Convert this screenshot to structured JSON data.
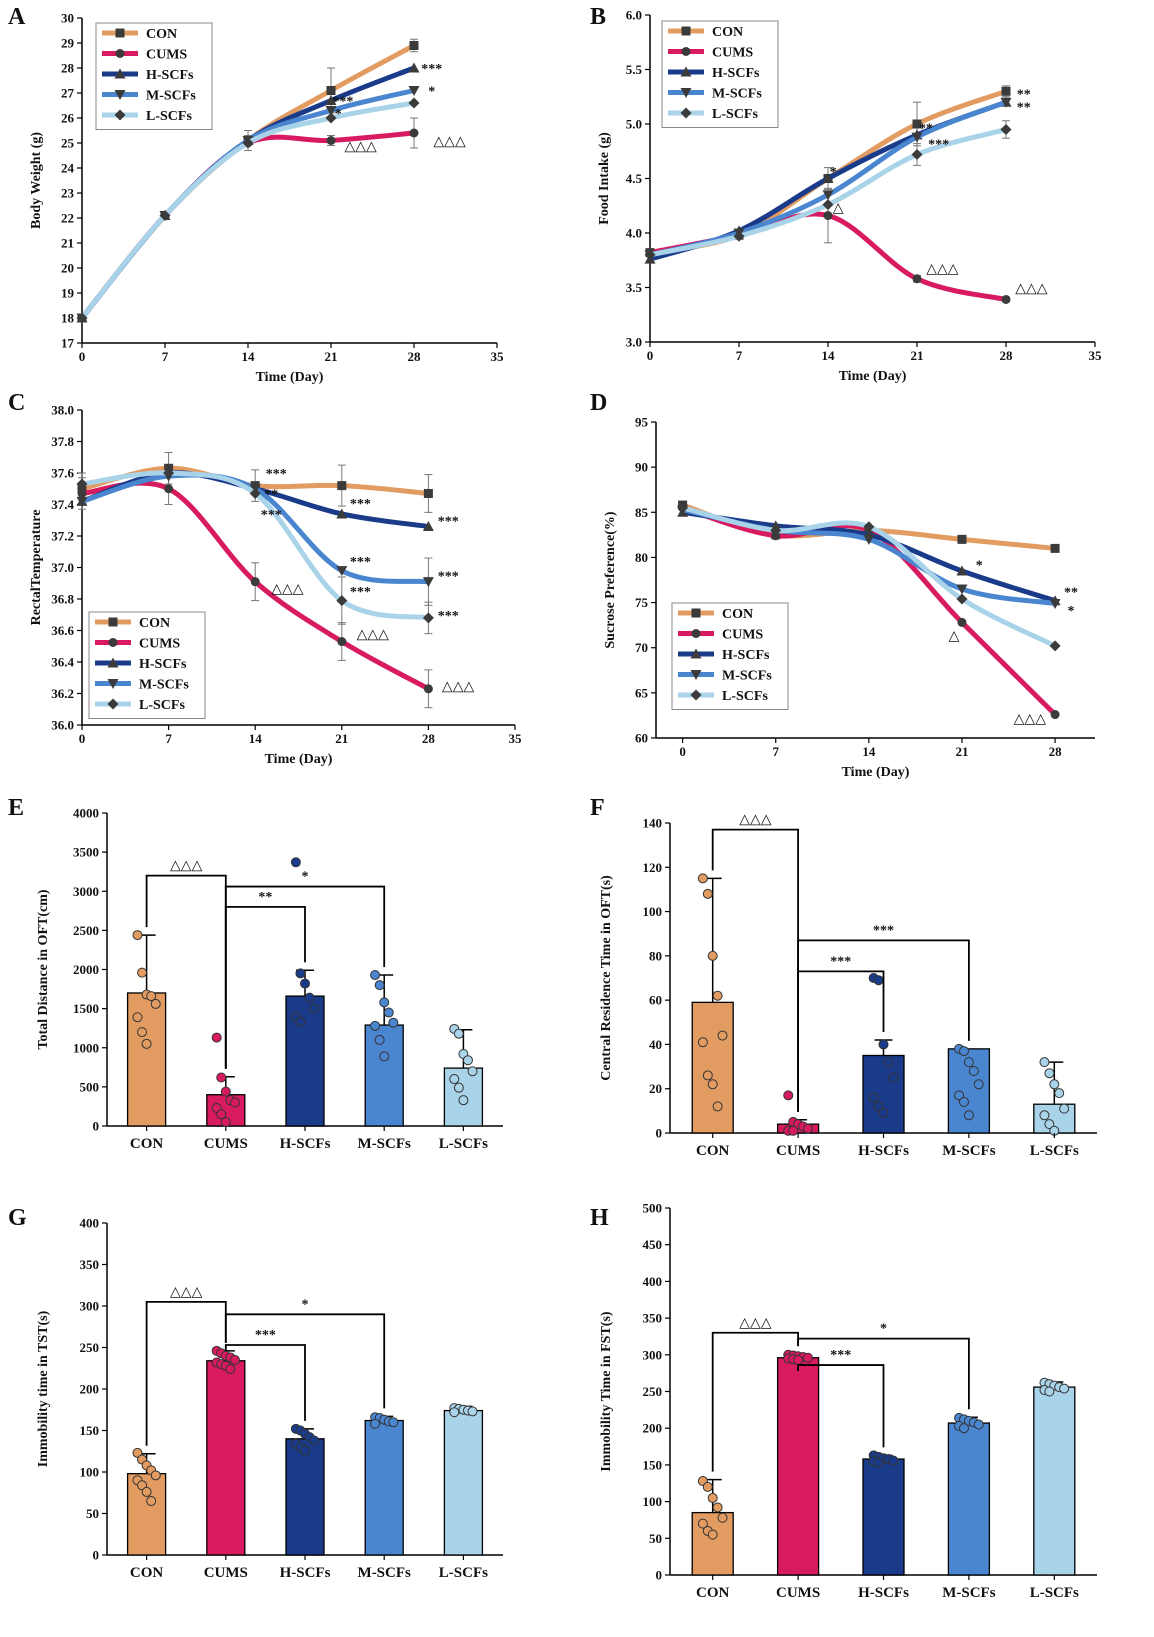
{
  "chart_data": [
    {
      "panel": "A",
      "type": "line",
      "xlabel": "Time (Day)",
      "ylabel": "Body Weight (g)",
      "xlim": [
        0,
        35
      ],
      "ylim": [
        17,
        30
      ],
      "xticks": [
        "0",
        "7",
        "14",
        "21",
        "28",
        "35"
      ],
      "yticks": [
        "17",
        "18",
        "19",
        "20",
        "21",
        "22",
        "23",
        "24",
        "25",
        "26",
        "27",
        "28",
        "29",
        "30"
      ],
      "x": [
        0,
        7,
        14,
        21,
        28
      ],
      "series": [
        {
          "name": "CON",
          "values": [
            18.0,
            22.1,
            25.1,
            27.1,
            28.9
          ],
          "err": [
            0.1,
            0.15,
            0.4,
            0.9,
            0.25
          ]
        },
        {
          "name": "CUMS",
          "values": [
            18.0,
            22.1,
            25.0,
            25.1,
            25.4
          ],
          "err": [
            0.1,
            0.15,
            0.3,
            0.2,
            0.6
          ]
        },
        {
          "name": "H-SCFs",
          "values": [
            18.0,
            22.1,
            25.1,
            26.7,
            28.0
          ],
          "err": [
            0,
            0,
            0,
            0,
            0
          ]
        },
        {
          "name": "M-SCFs",
          "values": [
            18.0,
            22.1,
            25.1,
            26.3,
            27.1
          ],
          "err": [
            0,
            0,
            0,
            0,
            0
          ]
        },
        {
          "name": "L-SCFs",
          "values": [
            18.0,
            22.1,
            25.0,
            26.0,
            26.6
          ],
          "err": [
            0,
            0,
            0,
            0,
            0
          ]
        }
      ],
      "annotations": [
        {
          "text": "***",
          "x": 29.5,
          "y": 28.0
        },
        {
          "text": "*",
          "x": 29.5,
          "y": 27.1
        },
        {
          "text": "***",
          "x": 22.0,
          "y": 26.7
        },
        {
          "text": "*",
          "x": 21.6,
          "y": 26.2
        },
        {
          "text": "△△△",
          "x": 23.5,
          "y": 24.9
        },
        {
          "text": "△△△",
          "x": 31.0,
          "y": 25.1
        }
      ]
    },
    {
      "panel": "B",
      "type": "line",
      "xlabel": "Time (Day)",
      "ylabel": "Food Intake (g)",
      "xlim": [
        0,
        35
      ],
      "ylim": [
        3.0,
        6.0
      ],
      "xticks": [
        "0",
        "7",
        "14",
        "21",
        "28",
        "35"
      ],
      "yticks": [
        "3.0",
        "3.5",
        "4.0",
        "4.5",
        "5.0",
        "5.5",
        "6.0"
      ],
      "x": [
        0,
        7,
        14,
        21,
        28
      ],
      "series": [
        {
          "name": "CON",
          "values": [
            3.82,
            3.98,
            4.5,
            5.0,
            5.3
          ],
          "err": [
            0.02,
            0.04,
            0.1,
            0.2,
            0.05
          ]
        },
        {
          "name": "CUMS",
          "values": [
            3.82,
            3.98,
            4.16,
            3.58,
            3.39
          ],
          "err": [
            0.02,
            0.04,
            0.25,
            0.03,
            0.02
          ]
        },
        {
          "name": "H-SCFs",
          "values": [
            3.76,
            4.02,
            4.5,
            4.9,
            5.2
          ],
          "err": [
            0,
            0,
            0,
            0,
            0
          ]
        },
        {
          "name": "M-SCFs",
          "values": [
            3.8,
            4.0,
            4.35,
            4.88,
            5.2
          ],
          "err": [
            0,
            0,
            0,
            0,
            0
          ]
        },
        {
          "name": "L-SCFs",
          "values": [
            3.8,
            3.97,
            4.26,
            4.72,
            4.95
          ],
          "err": [
            0,
            0,
            0,
            0.1,
            0.08
          ]
        }
      ],
      "annotations": [
        {
          "text": "**",
          "x": 29.4,
          "y": 5.28
        },
        {
          "text": "**",
          "x": 29.4,
          "y": 5.16
        },
        {
          "text": "*",
          "x": 14.4,
          "y": 4.57
        },
        {
          "text": "**",
          "x": 21.7,
          "y": 4.97
        },
        {
          "text": "***",
          "x": 22.7,
          "y": 4.82
        },
        {
          "text": "△",
          "x": 14.8,
          "y": 4.24
        },
        {
          "text": "△△△",
          "x": 23.0,
          "y": 3.68
        },
        {
          "text": "△△△",
          "x": 30.0,
          "y": 3.5
        }
      ]
    },
    {
      "panel": "C",
      "type": "line",
      "xlabel": "Time (Day)",
      "ylabel": "RectalTemperature",
      "xlim": [
        0,
        35
      ],
      "ylim": [
        36.0,
        38.0
      ],
      "xticks": [
        "0",
        "7",
        "14",
        "21",
        "28",
        "35"
      ],
      "yticks": [
        "36.0",
        "36.2",
        "36.4",
        "36.6",
        "36.8",
        "37.0",
        "37.2",
        "37.4",
        "37.6",
        "37.8",
        "38.0"
      ],
      "x": [
        0,
        7,
        14,
        21,
        28
      ],
      "series": [
        {
          "name": "CON",
          "values": [
            37.5,
            37.63,
            37.52,
            37.52,
            37.47
          ],
          "err": [
            0.1,
            0.1,
            0.1,
            0.13,
            0.12
          ]
        },
        {
          "name": "CUMS",
          "values": [
            37.47,
            37.5,
            36.91,
            36.53,
            36.23
          ],
          "err": [
            0.1,
            0.1,
            0.12,
            0.12,
            0.12
          ]
        },
        {
          "name": "H-SCFs",
          "values": [
            37.42,
            37.6,
            37.5,
            37.34,
            37.26
          ],
          "err": [
            0,
            0,
            0,
            0,
            0
          ]
        },
        {
          "name": "M-SCFs",
          "values": [
            37.42,
            37.58,
            37.5,
            36.98,
            36.91
          ],
          "err": [
            0,
            0,
            0,
            0,
            0.15
          ]
        },
        {
          "name": "L-SCFs",
          "values": [
            37.53,
            37.6,
            37.47,
            36.79,
            36.68
          ],
          "err": [
            0,
            0,
            0,
            0.15,
            0.1
          ]
        }
      ],
      "annotations": [
        {
          "text": "***",
          "x": 15.7,
          "y": 37.6
        },
        {
          "text": "**",
          "x": 15.3,
          "y": 37.47
        },
        {
          "text": "***",
          "x": 15.3,
          "y": 37.34
        },
        {
          "text": "***",
          "x": 22.5,
          "y": 37.41
        },
        {
          "text": "***",
          "x": 22.5,
          "y": 37.04
        },
        {
          "text": "***",
          "x": 22.5,
          "y": 36.85
        },
        {
          "text": "***",
          "x": 29.6,
          "y": 37.3
        },
        {
          "text": "***",
          "x": 29.6,
          "y": 36.95
        },
        {
          "text": "***",
          "x": 29.6,
          "y": 36.7
        },
        {
          "text": "△△△",
          "x": 16.6,
          "y": 36.87
        },
        {
          "text": "△△△",
          "x": 23.5,
          "y": 36.58
        },
        {
          "text": "△△△",
          "x": 30.4,
          "y": 36.25
        }
      ]
    },
    {
      "panel": "D",
      "type": "line",
      "xlabel": "Time (Day)",
      "ylabel": "Sucrose Preference(%)",
      "xlim": [
        -2,
        31
      ],
      "ylim": [
        60,
        95
      ],
      "xticks": [
        "0",
        "7",
        "14",
        "21",
        "28"
      ],
      "yticks": [
        "60",
        "65",
        "70",
        "75",
        "80",
        "85",
        "90",
        "95"
      ],
      "x": [
        0,
        7,
        14,
        21,
        28
      ],
      "series": [
        {
          "name": "CON",
          "values": [
            85.8,
            82.5,
            83.0,
            82.0,
            81.0
          ],
          "err": [
            0,
            0,
            0,
            0,
            0
          ]
        },
        {
          "name": "CUMS",
          "values": [
            85.5,
            82.4,
            83.0,
            72.8,
            62.6
          ],
          "err": [
            0,
            0,
            0,
            0,
            0
          ]
        },
        {
          "name": "H-SCFs",
          "values": [
            85.0,
            83.5,
            82.5,
            78.5,
            75.2
          ],
          "err": [
            0,
            0,
            0,
            0,
            0
          ]
        },
        {
          "name": "M-SCFs",
          "values": [
            85.3,
            83.0,
            82.0,
            76.5,
            74.9
          ],
          "err": [
            0,
            0,
            0,
            0,
            0
          ]
        },
        {
          "name": "L-SCFs",
          "values": [
            85.5,
            83.0,
            83.4,
            75.4,
            70.2
          ],
          "err": [
            0,
            0,
            0,
            0,
            0
          ]
        }
      ],
      "annotations": [
        {
          "text": "*",
          "x": 22.3,
          "y": 79.2
        },
        {
          "text": "**",
          "x": 29.2,
          "y": 76.2
        },
        {
          "text": "*",
          "x": 29.2,
          "y": 74.2
        },
        {
          "text": "△",
          "x": 20.4,
          "y": 71.4
        },
        {
          "text": "△△△",
          "x": 26.1,
          "y": 62.2
        }
      ]
    },
    {
      "panel": "E",
      "type": "bar",
      "ylabel": "Total Distance in OFT(cm)",
      "ylim": [
        0,
        4000
      ],
      "yticks": [
        "0",
        "500",
        "1000",
        "1500",
        "2000",
        "2500",
        "3000",
        "3500",
        "4000"
      ],
      "categories": [
        "CON",
        "CUMS",
        "H-SCFs",
        "M-SCFs",
        "L-SCFs"
      ],
      "values": [
        1700,
        400,
        1660,
        1290,
        740
      ],
      "err": [
        740,
        230,
        330,
        640,
        490
      ],
      "points": [
        [
          2440,
          1960,
          1680,
          1660,
          1560,
          1390,
          1200,
          1050
        ],
        [
          1130,
          620,
          440,
          330,
          300,
          230,
          150,
          50
        ],
        [
          3370,
          1950,
          1820,
          1640,
          1500,
          1390,
          1330
        ],
        [
          1930,
          1800,
          1580,
          1450,
          1320,
          1280,
          1100,
          890
        ],
        [
          1240,
          1180,
          920,
          840,
          700,
          600,
          490,
          330
        ]
      ],
      "brackets": [
        {
          "from": 0,
          "to": 1,
          "label": "△△△",
          "y": 3200
        },
        {
          "from": 1,
          "to": 3,
          "label": "*",
          "y": 3060
        },
        {
          "from": 1,
          "to": 2,
          "label": "**",
          "y": 2800
        }
      ]
    },
    {
      "panel": "F",
      "type": "bar",
      "ylabel": "Central Residence Time in OFT(s)",
      "ylim": [
        0,
        140
      ],
      "yticks": [
        "0",
        "20",
        "40",
        "60",
        "80",
        "100",
        "120",
        "140"
      ],
      "categories": [
        "CON",
        "CUMS",
        "H-SCFs",
        "M-SCFs",
        "L-SCFs"
      ],
      "values": [
        59,
        4,
        35,
        38,
        13
      ],
      "err": [
        56,
        2,
        7,
        0,
        19
      ],
      "points": [
        [
          115,
          108,
          80,
          62,
          44,
          41,
          26,
          22,
          12
        ],
        [
          17,
          5,
          4,
          3,
          2,
          1,
          1
        ],
        [
          70,
          69,
          40,
          32,
          25,
          16,
          12,
          9
        ],
        [
          38,
          37,
          32,
          28,
          22,
          17,
          14,
          8
        ],
        [
          32,
          27,
          22,
          18,
          11,
          8,
          4,
          1
        ]
      ],
      "brackets": [
        {
          "from": 0,
          "to": 1,
          "label": "△△△",
          "y": 137
        },
        {
          "from": 1,
          "to": 3,
          "label": "***",
          "y": 87
        },
        {
          "from": 1,
          "to": 2,
          "label": "***",
          "y": 73
        }
      ]
    },
    {
      "panel": "G",
      "type": "bar",
      "ylabel": "Immobility time in TST(s)",
      "ylim": [
        0,
        400
      ],
      "yticks": [
        "0",
        "50",
        "100",
        "150",
        "200",
        "250",
        "300",
        "350",
        "400"
      ],
      "categories": [
        "CON",
        "CUMS",
        "H-SCFs",
        "M-SCFs",
        "L-SCFs"
      ],
      "values": [
        98,
        234,
        140,
        162,
        174
      ],
      "err": [
        24,
        12,
        12,
        5,
        5
      ],
      "points": [
        [
          123,
          115,
          108,
          102,
          96,
          90,
          84,
          76,
          65
        ],
        [
          246,
          243,
          240,
          238,
          235,
          232,
          230,
          228,
          224
        ],
        [
          152,
          150,
          146,
          142,
          138,
          134,
          130,
          126
        ],
        [
          166,
          165,
          163,
          161,
          160,
          158
        ],
        [
          177,
          176,
          175,
          174,
          173,
          172
        ]
      ],
      "brackets": [
        {
          "from": 0,
          "to": 1,
          "label": "△△△",
          "y": 305
        },
        {
          "from": 1,
          "to": 3,
          "label": "*",
          "y": 290
        },
        {
          "from": 1,
          "to": 2,
          "label": "***",
          "y": 253
        }
      ]
    },
    {
      "panel": "H",
      "type": "bar",
      "ylabel": "Immobility Time in FST(s)",
      "ylim": [
        0,
        500
      ],
      "yticks": [
        "0",
        "50",
        "100",
        "150",
        "200",
        "250",
        "300",
        "350",
        "400",
        "450",
        "500"
      ],
      "categories": [
        "CON",
        "CUMS",
        "H-SCFs",
        "M-SCFs",
        "L-SCFs"
      ],
      "values": [
        85,
        296,
        158,
        207,
        256
      ],
      "err": [
        45,
        5,
        5,
        8,
        7
      ],
      "points": [
        [
          128,
          120,
          105,
          92,
          78,
          70,
          60,
          55
        ],
        [
          300,
          299,
          298,
          297,
          296,
          295,
          294,
          293
        ],
        [
          163,
          161,
          159,
          158,
          156,
          155,
          153
        ],
        [
          214,
          212,
          210,
          208,
          205,
          203,
          200
        ],
        [
          262,
          260,
          258,
          256,
          254,
          252,
          250
        ]
      ],
      "brackets": [
        {
          "from": 0,
          "to": 1,
          "label": "△△△",
          "y": 330
        },
        {
          "from": 1,
          "to": 3,
          "label": "*",
          "y": 322
        },
        {
          "from": 1,
          "to": 2,
          "label": "***",
          "y": 286
        }
      ]
    }
  ],
  "colors": {
    "CON": "#E29C62",
    "CUMS": "#D81B60",
    "H-SCFs": "#1A3A8A",
    "M-SCFs": "#4A86D0",
    "L-SCFs": "#A9D3E8"
  }
}
